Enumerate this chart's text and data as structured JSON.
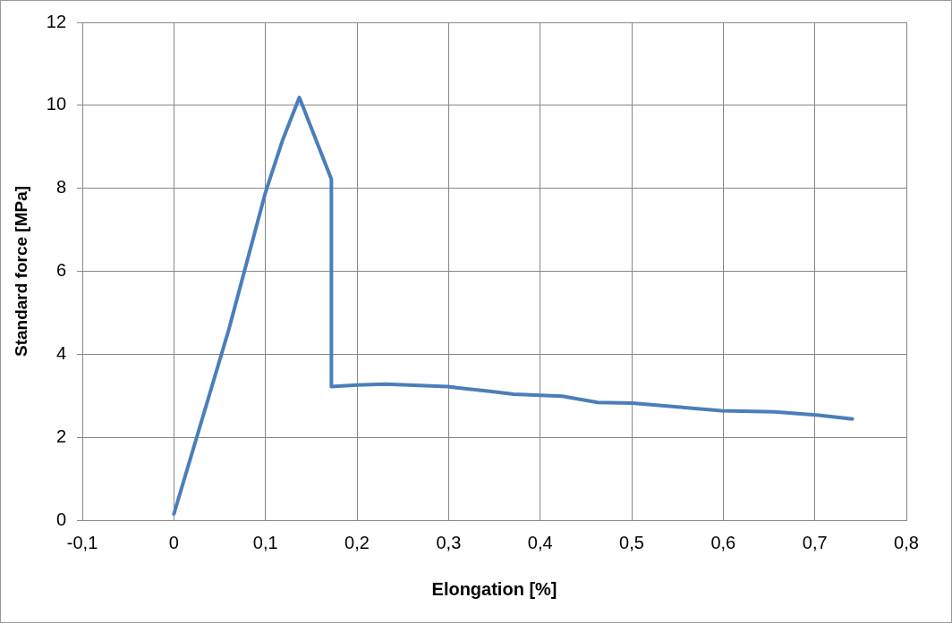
{
  "chart_data": {
    "type": "line",
    "xlabel": "Elongation [%]",
    "ylabel": "Standard force [MPa]",
    "series": [
      {
        "color": "#4a7ebb",
        "x": [
          0,
          0.06,
          0.1,
          0.119,
          0.137,
          0.172,
          0.172,
          0.2,
          0.231,
          0.299,
          0.347,
          0.371,
          0.424,
          0.463,
          0.501,
          0.55,
          0.598,
          0.656,
          0.704,
          0.741
        ],
        "values": [
          0.15,
          4.6,
          7.9,
          9.18,
          10.19,
          8.22,
          3.22,
          3.26,
          3.28,
          3.22,
          3.1,
          3.04,
          2.99,
          2.84,
          2.82,
          2.73,
          2.64,
          2.61,
          2.53,
          2.44
        ]
      }
    ],
    "xlim": [
      -0.1,
      0.8
    ],
    "xticks": [
      {
        "value": -0.1,
        "label": "-0,1"
      },
      0,
      {
        "value": 0.1,
        "label": "0,1"
      },
      {
        "value": 0.2,
        "label": "0,2"
      },
      {
        "value": 0.3,
        "label": "0,3"
      },
      {
        "value": 0.4,
        "label": "0,4"
      },
      {
        "value": 0.5,
        "label": "0,5"
      },
      {
        "value": 0.6,
        "label": "0,6"
      },
      {
        "value": 0.7,
        "label": "0,7"
      },
      {
        "value": 0.8,
        "label": "0,8"
      }
    ],
    "ylim": [
      0,
      12
    ],
    "yticks": [
      0,
      2,
      4,
      6,
      8,
      10,
      12
    ],
    "grid": true,
    "legend": false,
    "marker": "none",
    "line_style": "solid"
  }
}
